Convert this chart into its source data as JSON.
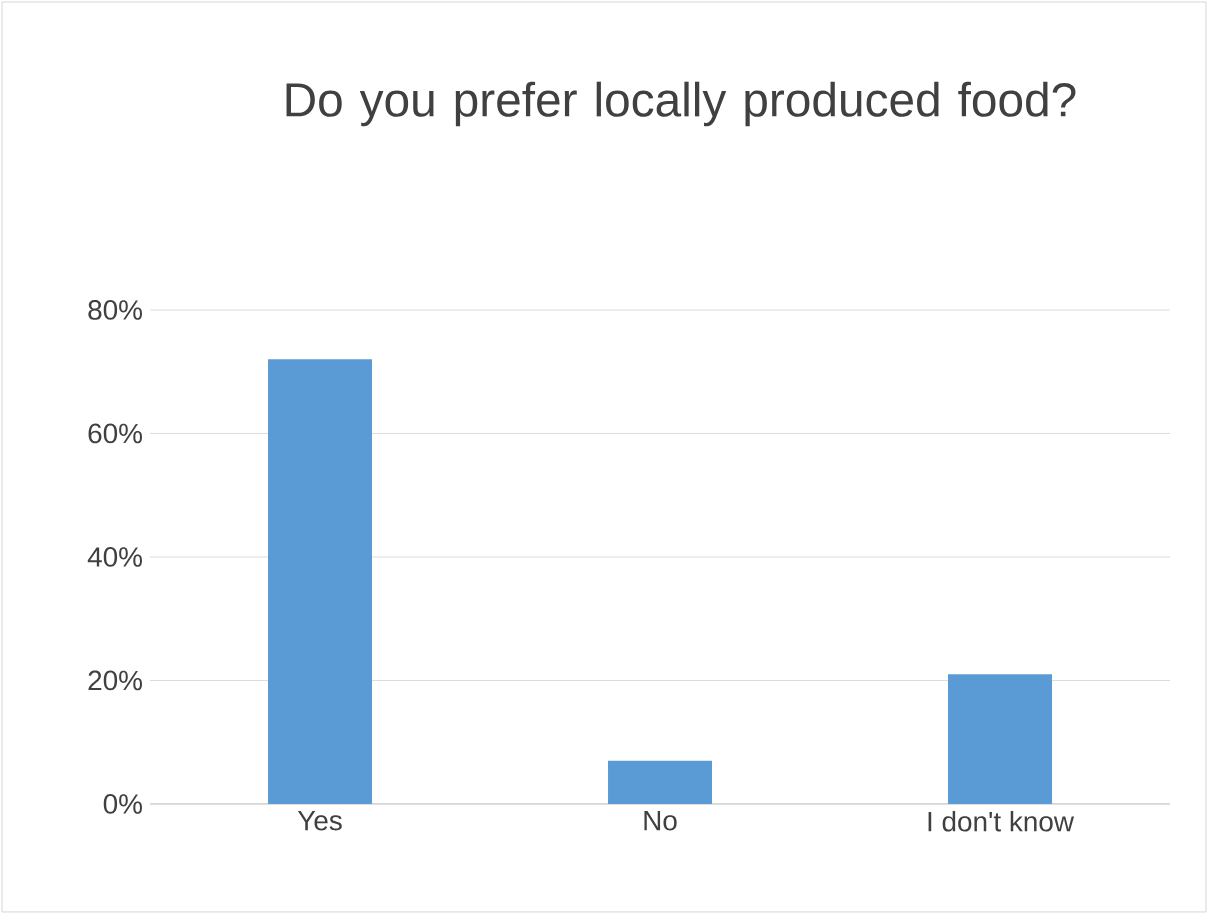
{
  "chart_data": {
    "type": "bar",
    "title": "Do you prefer locally produced food?",
    "categories": [
      "Yes",
      "No",
      "I don't know"
    ],
    "values": [
      72,
      7,
      21
    ],
    "color": "#5b9bd5",
    "ylim": [
      0,
      80
    ],
    "yticks": [
      {
        "value": 0,
        "label": "0%"
      },
      {
        "value": 20,
        "label": "20%"
      },
      {
        "value": 40,
        "label": "40%"
      },
      {
        "value": 60,
        "label": "60%"
      },
      {
        "value": 80,
        "label": "80%"
      }
    ],
    "grid": "y"
  }
}
